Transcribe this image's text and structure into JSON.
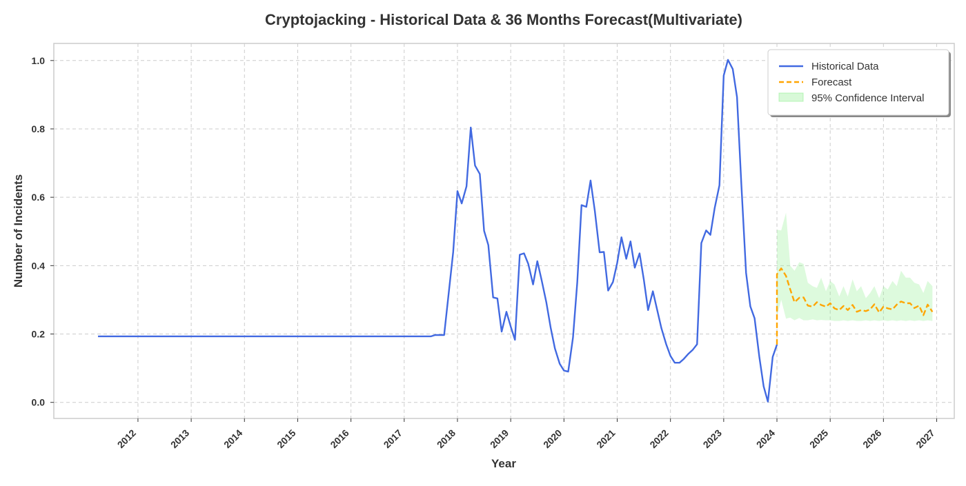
{
  "chart_data": {
    "type": "line",
    "title": "Cryptojacking - Historical Data & 36 Months Forecast(Multivariate)",
    "xlabel": "Year",
    "ylabel": "Number of Incidents",
    "xlim": [
      2010.42,
      2027.33
    ],
    "ylim": [
      -0.047,
      1.05
    ],
    "x_ticks": [
      "2012",
      "2013",
      "2014",
      "2015",
      "2016",
      "2017",
      "2018",
      "2019",
      "2020",
      "2021",
      "2022",
      "2023",
      "2024",
      "2025",
      "2026",
      "2027"
    ],
    "y_ticks": [
      "0.0",
      "0.2",
      "0.4",
      "0.6",
      "0.8",
      "1.0"
    ],
    "grid": true,
    "legend_position": "top-right",
    "series": [
      {
        "name": "Historical Data",
        "color": "#4169E1",
        "style": "solid",
        "points": [
          [
            2011.25,
            0.193
          ],
          [
            2017.5,
            0.193
          ],
          [
            2017.58,
            0.197
          ],
          [
            2017.75,
            0.197
          ],
          [
            2017.92,
            0.44
          ],
          [
            2018.0,
            0.618
          ],
          [
            2018.08,
            0.582
          ],
          [
            2018.17,
            0.632
          ],
          [
            2018.25,
            0.804
          ],
          [
            2018.33,
            0.693
          ],
          [
            2018.42,
            0.668
          ],
          [
            2018.5,
            0.502
          ],
          [
            2018.58,
            0.46
          ],
          [
            2018.67,
            0.307
          ],
          [
            2018.75,
            0.304
          ],
          [
            2018.83,
            0.207
          ],
          [
            2018.92,
            0.265
          ],
          [
            2019.0,
            0.222
          ],
          [
            2019.08,
            0.183
          ],
          [
            2019.17,
            0.432
          ],
          [
            2019.25,
            0.436
          ],
          [
            2019.33,
            0.405
          ],
          [
            2019.42,
            0.345
          ],
          [
            2019.5,
            0.413
          ],
          [
            2019.58,
            0.358
          ],
          [
            2019.67,
            0.292
          ],
          [
            2019.75,
            0.219
          ],
          [
            2019.83,
            0.158
          ],
          [
            2019.92,
            0.113
          ],
          [
            2020.0,
            0.093
          ],
          [
            2020.08,
            0.09
          ],
          [
            2020.17,
            0.19
          ],
          [
            2020.25,
            0.351
          ],
          [
            2020.33,
            0.577
          ],
          [
            2020.42,
            0.572
          ],
          [
            2020.5,
            0.649
          ],
          [
            2020.58,
            0.56
          ],
          [
            2020.67,
            0.439
          ],
          [
            2020.75,
            0.44
          ],
          [
            2020.83,
            0.327
          ],
          [
            2020.92,
            0.352
          ],
          [
            2021.0,
            0.408
          ],
          [
            2021.08,
            0.483
          ],
          [
            2021.17,
            0.42
          ],
          [
            2021.25,
            0.471
          ],
          [
            2021.33,
            0.394
          ],
          [
            2021.42,
            0.436
          ],
          [
            2021.5,
            0.359
          ],
          [
            2021.58,
            0.27
          ],
          [
            2021.67,
            0.325
          ],
          [
            2021.75,
            0.271
          ],
          [
            2021.83,
            0.217
          ],
          [
            2021.92,
            0.17
          ],
          [
            2022.0,
            0.136
          ],
          [
            2022.08,
            0.116
          ],
          [
            2022.17,
            0.116
          ],
          [
            2022.25,
            0.127
          ],
          [
            2022.33,
            0.141
          ],
          [
            2022.42,
            0.154
          ],
          [
            2022.5,
            0.17
          ],
          [
            2022.58,
            0.466
          ],
          [
            2022.67,
            0.503
          ],
          [
            2022.75,
            0.49
          ],
          [
            2022.83,
            0.568
          ],
          [
            2022.92,
            0.635
          ],
          [
            2023.0,
            0.956
          ],
          [
            2023.08,
            1.002
          ],
          [
            2023.17,
            0.975
          ],
          [
            2023.25,
            0.893
          ],
          [
            2023.33,
            0.642
          ],
          [
            2023.42,
            0.379
          ],
          [
            2023.5,
            0.281
          ],
          [
            2023.58,
            0.246
          ],
          [
            2023.67,
            0.132
          ],
          [
            2023.75,
            0.047
          ],
          [
            2023.83,
            0.002
          ],
          [
            2023.92,
            0.133
          ],
          [
            2024.0,
            0.169
          ]
        ]
      },
      {
        "name": "Forecast",
        "color": "#FFA500",
        "style": "dashed",
        "points": [
          [
            2024.0,
            0.169
          ],
          [
            2024.0,
            0.375
          ],
          [
            2024.08,
            0.392
          ],
          [
            2024.17,
            0.37
          ],
          [
            2024.25,
            0.33
          ],
          [
            2024.33,
            0.293
          ],
          [
            2024.42,
            0.306
          ],
          [
            2024.5,
            0.307
          ],
          [
            2024.58,
            0.283
          ],
          [
            2024.67,
            0.28
          ],
          [
            2024.75,
            0.293
          ],
          [
            2024.83,
            0.285
          ],
          [
            2024.92,
            0.28
          ],
          [
            2025.0,
            0.29
          ],
          [
            2025.08,
            0.275
          ],
          [
            2025.17,
            0.27
          ],
          [
            2025.25,
            0.282
          ],
          [
            2025.33,
            0.27
          ],
          [
            2025.42,
            0.285
          ],
          [
            2025.5,
            0.265
          ],
          [
            2025.58,
            0.27
          ],
          [
            2025.67,
            0.267
          ],
          [
            2025.75,
            0.272
          ],
          [
            2025.83,
            0.287
          ],
          [
            2025.92,
            0.263
          ],
          [
            2026.0,
            0.28
          ],
          [
            2026.08,
            0.275
          ],
          [
            2026.17,
            0.272
          ],
          [
            2026.25,
            0.286
          ],
          [
            2026.33,
            0.295
          ],
          [
            2026.42,
            0.29
          ],
          [
            2026.5,
            0.29
          ],
          [
            2026.58,
            0.276
          ],
          [
            2026.67,
            0.283
          ],
          [
            2026.75,
            0.255
          ],
          [
            2026.83,
            0.286
          ],
          [
            2026.92,
            0.265
          ]
        ]
      }
    ],
    "confidence_interval": {
      "name": "95% Confidence Interval",
      "color": "#90EE90",
      "x": [
        2024.0,
        2024.08,
        2024.17,
        2024.25,
        2024.33,
        2024.42,
        2024.5,
        2024.58,
        2024.67,
        2024.75,
        2024.83,
        2024.92,
        2025.0,
        2025.08,
        2025.17,
        2025.25,
        2025.33,
        2025.42,
        2025.5,
        2025.58,
        2025.67,
        2025.75,
        2025.83,
        2025.92,
        2026.0,
        2026.08,
        2026.17,
        2026.25,
        2026.33,
        2026.42,
        2026.5,
        2026.58,
        2026.67,
        2026.75,
        2026.83,
        2026.92
      ],
      "upper": [
        0.505,
        0.503,
        0.555,
        0.4,
        0.385,
        0.41,
        0.405,
        0.35,
        0.34,
        0.335,
        0.365,
        0.325,
        0.355,
        0.345,
        0.31,
        0.34,
        0.31,
        0.36,
        0.325,
        0.34,
        0.305,
        0.32,
        0.34,
        0.305,
        0.34,
        0.33,
        0.355,
        0.34,
        0.385,
        0.365,
        0.365,
        0.35,
        0.345,
        0.32,
        0.355,
        0.34
      ],
      "lower": [
        0.25,
        0.3,
        0.245,
        0.248,
        0.24,
        0.247,
        0.24,
        0.24,
        0.243,
        0.24,
        0.241,
        0.24,
        0.24,
        0.238,
        0.238,
        0.24,
        0.238,
        0.24,
        0.238,
        0.238,
        0.24,
        0.238,
        0.24,
        0.238,
        0.24,
        0.238,
        0.24,
        0.238,
        0.24,
        0.238,
        0.24,
        0.238,
        0.24,
        0.238,
        0.24,
        0.238
      ]
    }
  }
}
